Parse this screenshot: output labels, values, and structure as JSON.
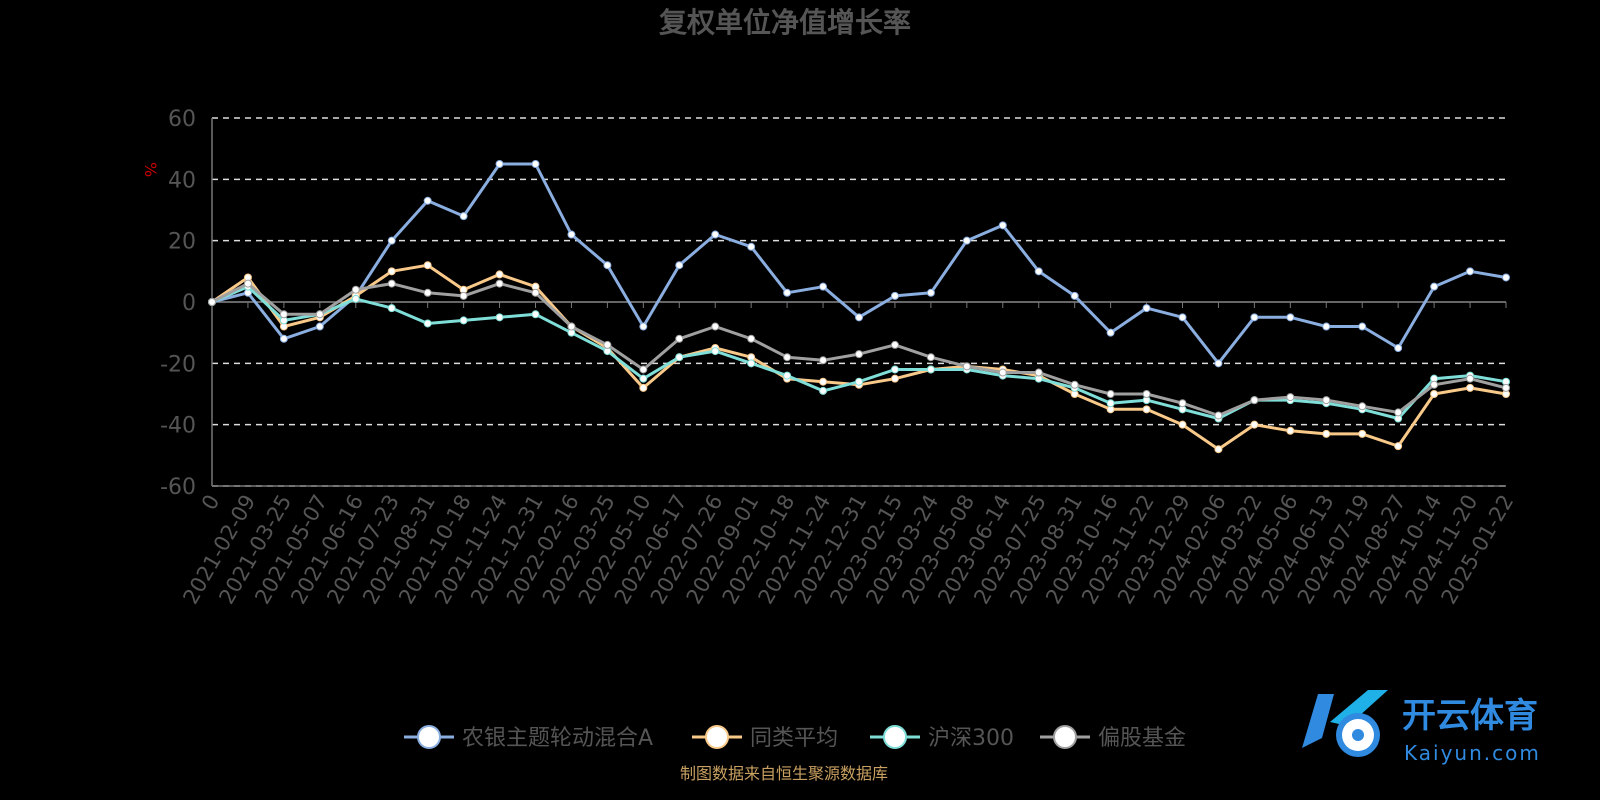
{
  "chart_data": {
    "type": "line",
    "title": "复权单位净值增长率",
    "ylabel": "%",
    "ylim": [
      -60,
      60
    ],
    "yticks": [
      60,
      40,
      20,
      0,
      -20,
      -40,
      -60
    ],
    "grid": true,
    "legend_position": "bottom",
    "x": [
      "0",
      "2021-02-09",
      "2021-03-25",
      "2021-05-07",
      "2021-06-16",
      "2021-07-23",
      "2021-08-31",
      "2021-10-18",
      "2021-11-24",
      "2021-12-31",
      "2022-02-16",
      "2022-03-25",
      "2022-05-10",
      "2022-06-17",
      "2022-07-26",
      "2022-09-01",
      "2022-10-18",
      "2022-11-24",
      "2022-12-31",
      "2023-02-15",
      "2023-03-24",
      "2023-05-08",
      "2023-06-14",
      "2023-07-25",
      "2023-08-31",
      "2023-10-16",
      "2023-11-22",
      "2023-12-29",
      "2024-02-06",
      "2024-03-22",
      "2024-05-06",
      "2024-06-13",
      "2024-07-19",
      "2024-08-27",
      "2024-10-14",
      "2024-11-20",
      "2025-01-22"
    ],
    "series": [
      {
        "name": "农银主题轮动混合A",
        "color": "#8aaee0",
        "values": [
          0,
          3,
          -12,
          -8,
          2,
          20,
          33,
          28,
          45,
          45,
          22,
          12,
          -8,
          12,
          22,
          18,
          3,
          5,
          -5,
          2,
          3,
          20,
          25,
          10,
          2,
          -10,
          -2,
          -5,
          -20,
          -5,
          -5,
          -8,
          -8,
          -15,
          5,
          10,
          8
        ]
      },
      {
        "name": "同类平均",
        "color": "#f9c98a",
        "values": [
          0,
          8,
          -8,
          -5,
          2,
          10,
          12,
          4,
          9,
          5,
          -8,
          -15,
          -28,
          -18,
          -15,
          -18,
          -25,
          -26,
          -27,
          -25,
          -22,
          -21,
          -22,
          -24,
          -30,
          -35,
          -35,
          -40,
          -48,
          -40,
          -42,
          -43,
          -43,
          -47,
          -30,
          -28,
          -30
        ]
      },
      {
        "name": "沪深300",
        "color": "#7fdfd8",
        "values": [
          0,
          5,
          -6,
          -4,
          1,
          -2,
          -7,
          -6,
          -5,
          -4,
          -10,
          -16,
          -25,
          -18,
          -16,
          -20,
          -24,
          -29,
          -26,
          -22,
          -22,
          -22,
          -24,
          -25,
          -28,
          -33,
          -32,
          -35,
          -38,
          -32,
          -32,
          -33,
          -35,
          -38,
          -25,
          -24,
          -26
        ]
      },
      {
        "name": "偏股基金",
        "color": "#a0a0a0",
        "values": [
          0,
          6,
          -4,
          -4,
          4,
          6,
          3,
          2,
          6,
          3,
          -8,
          -14,
          -22,
          -12,
          -8,
          -12,
          -18,
          -19,
          -17,
          -14,
          -18,
          -21,
          -23,
          -23,
          -27,
          -30,
          -30,
          -33,
          -37,
          -32,
          -31,
          -32,
          -34,
          -36,
          -27,
          -25,
          -28
        ]
      }
    ]
  },
  "source_note": "制图数据来自恒生聚源数据库",
  "watermark": {
    "name": "开云体育",
    "url": "Kaiyun.com"
  }
}
